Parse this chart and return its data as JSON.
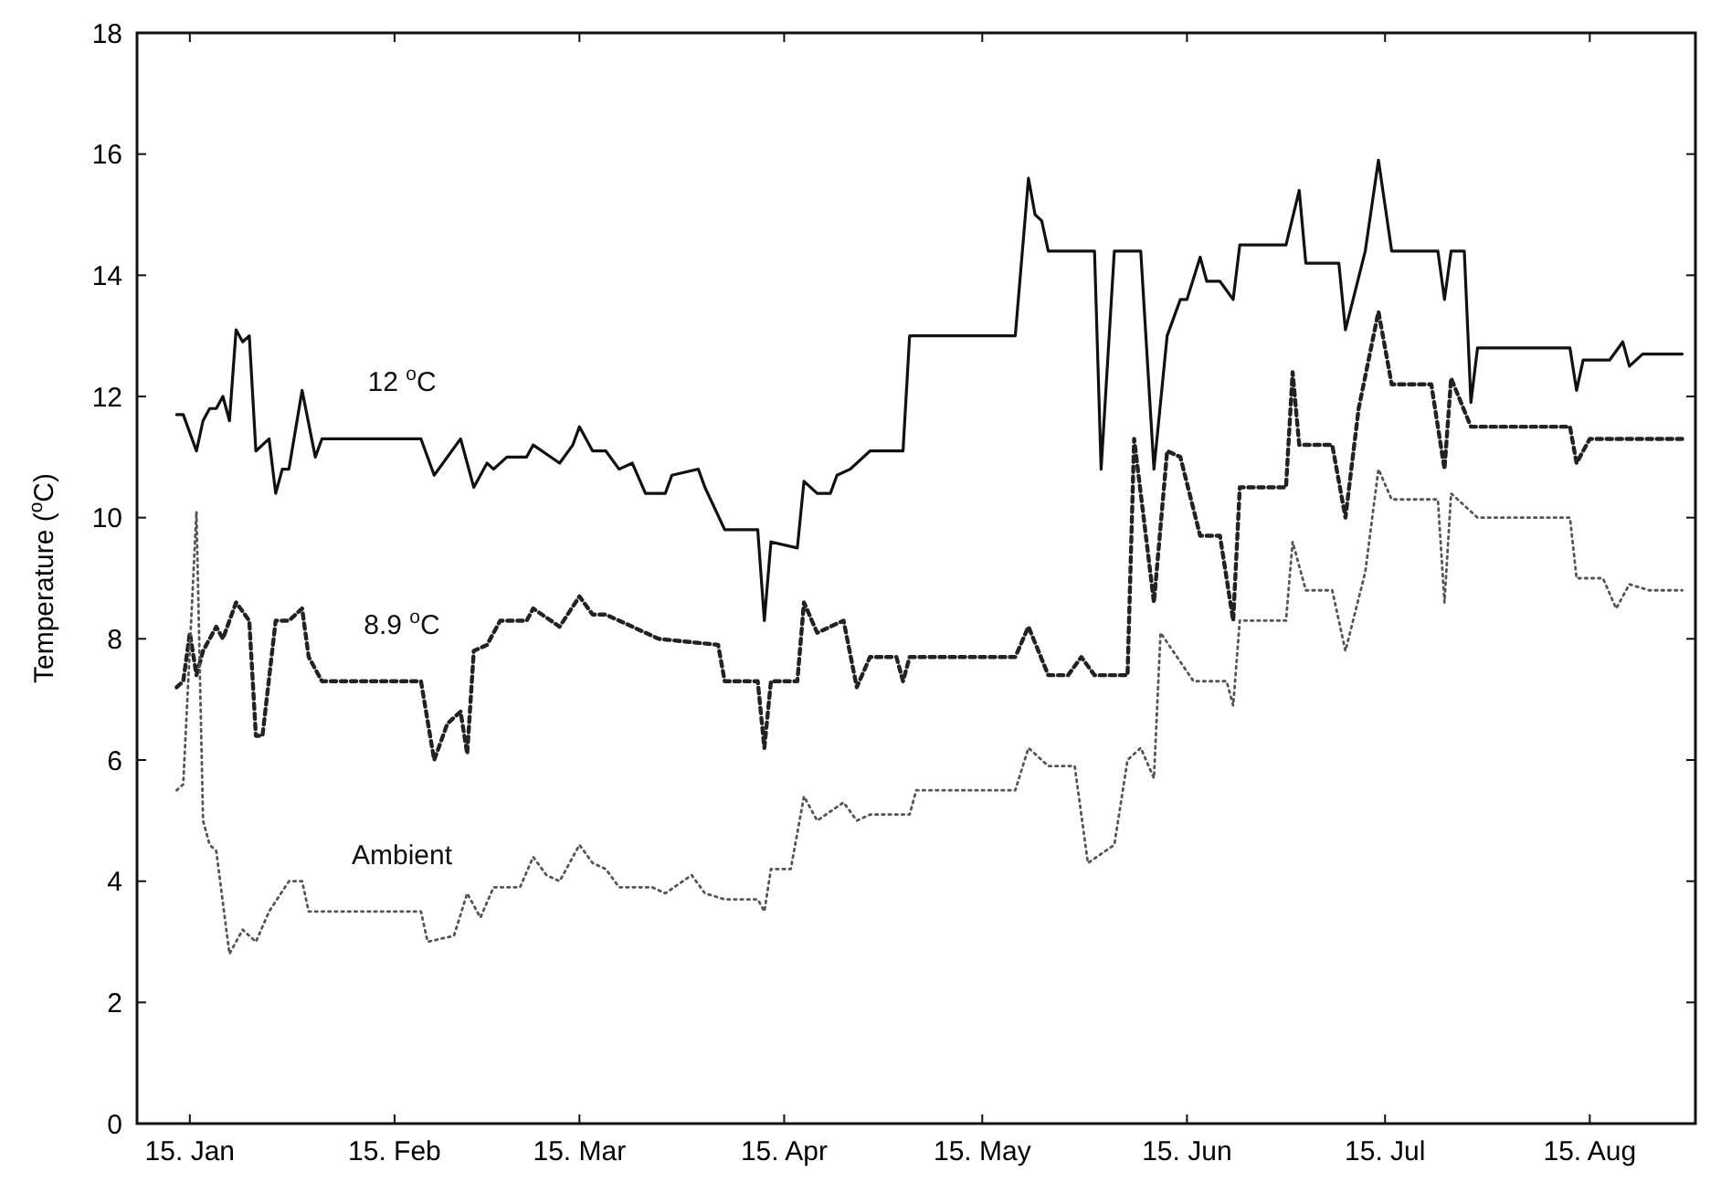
{
  "chart_data": {
    "type": "line",
    "ylabel": "Temperature ($^{o}$C)",
    "xlim": [
      "--01-07",
      "--08-31"
    ],
    "xticks": [
      {
        "value": "--01-15",
        "label": "15. Jan"
      },
      {
        "value": "--02-15",
        "label": "15. Feb"
      },
      {
        "value": "--03-15",
        "label": "15. Mar"
      },
      {
        "value": "--04-15",
        "label": "15. Apr"
      },
      {
        "value": "--05-15",
        "label": "15. May"
      },
      {
        "value": "--06-15",
        "label": "15. Jun"
      },
      {
        "value": "--07-15",
        "label": "15. Jul"
      },
      {
        "value": "--08-15",
        "label": "15. Aug"
      }
    ],
    "ylim": [
      0,
      18
    ],
    "yticks": [
      0,
      2,
      4,
      6,
      8,
      10,
      12,
      14,
      16,
      18
    ],
    "grid": false,
    "legend": false,
    "marker": "none",
    "series": [
      {
        "name": "12 $^{o}$C",
        "color": "#111111",
        "line_style": "solid",
        "x": [
          "--01-13",
          "--01-14",
          "--01-16",
          "--01-17",
          "--01-18",
          "--01-19",
          "--01-20",
          "--01-21",
          "--01-22",
          "--01-23",
          "--01-24",
          "--01-25",
          "--01-27",
          "--01-28",
          "--01-29",
          "--01-30",
          "--02-01",
          "--02-03",
          "--02-04",
          "--02-19",
          "--02-21",
          "--02-25",
          "--02-27",
          "--03-01",
          "--03-02",
          "--03-04",
          "--03-07",
          "--03-08",
          "--03-12",
          "--03-14",
          "--03-15",
          "--03-17",
          "--03-19",
          "--03-21",
          "--03-23",
          "--03-25",
          "--03-28",
          "--03-29",
          "--04-02",
          "--04-03",
          "--04-06",
          "--04-11",
          "--04-12",
          "--04-13",
          "--04-17",
          "--04-18",
          "--04-20",
          "--04-22",
          "--04-23",
          "--04-25",
          "--04-28",
          "--05-03",
          "--05-04",
          "--05-20",
          "--05-22",
          "--05-23",
          "--05-24",
          "--05-25",
          "--06-01",
          "--06-02",
          "--06-04",
          "--06-08",
          "--06-10",
          "--06-12",
          "--06-14",
          "--06-15",
          "--06-17",
          "--06-18",
          "--06-20",
          "--06-22",
          "--06-23",
          "--06-30",
          "--07-02",
          "--07-03",
          "--07-08",
          "--07-09",
          "--07-12",
          "--07-14",
          "--07-16",
          "--07-23",
          "--07-24",
          "--07-25",
          "--07-27",
          "--07-28",
          "--07-29",
          "--08-12",
          "--08-13",
          "--08-14",
          "--08-18",
          "--08-20",
          "--08-21",
          "--08-23",
          "--08-29"
        ],
        "values": [
          11.7,
          11.7,
          11.1,
          11.6,
          11.8,
          11.8,
          12.0,
          11.6,
          13.1,
          12.9,
          13.0,
          11.1,
          11.3,
          10.4,
          10.8,
          10.8,
          12.1,
          11.0,
          11.3,
          11.3,
          10.7,
          11.3,
          10.5,
          10.9,
          10.8,
          11.0,
          11.0,
          11.2,
          10.9,
          11.2,
          11.5,
          11.1,
          11.1,
          10.8,
          10.9,
          10.4,
          10.4,
          10.7,
          10.8,
          10.5,
          9.8,
          9.8,
          8.3,
          9.6,
          9.5,
          10.6,
          10.4,
          10.4,
          10.7,
          10.8,
          11.1,
          11.1,
          13.0,
          13.0,
          15.6,
          15.0,
          14.9,
          14.4,
          14.4,
          10.8,
          14.4,
          14.4,
          10.8,
          13.0,
          13.6,
          13.6,
          14.3,
          13.9,
          13.9,
          13.6,
          14.5,
          14.5,
          15.4,
          14.2,
          14.2,
          13.1,
          14.4,
          15.9,
          14.4,
          14.4,
          13.6,
          14.4,
          14.4,
          11.9,
          12.8,
          12.8,
          12.1,
          12.6,
          12.6,
          12.9,
          12.5,
          12.7,
          12.7
        ]
      },
      {
        "name": "8.9 $^{o}$C",
        "color": "#222222",
        "line_style": "dashed",
        "x": [
          "--01-13",
          "--01-14",
          "--01-15",
          "--01-16",
          "--01-17",
          "--01-19",
          "--01-20",
          "--01-22",
          "--01-24",
          "--01-25",
          "--01-26",
          "--01-28",
          "--01-30",
          "--02-01",
          "--02-02",
          "--02-04",
          "--02-19",
          "--02-21",
          "--02-23",
          "--02-25",
          "--02-26",
          "--02-27",
          "--03-01",
          "--03-03",
          "--03-07",
          "--03-08",
          "--03-12",
          "--03-15",
          "--03-17",
          "--03-19",
          "--03-23",
          "--03-27",
          "--04-05",
          "--04-06",
          "--04-11",
          "--04-12",
          "--04-13",
          "--04-17",
          "--04-18",
          "--04-20",
          "--04-24",
          "--04-26",
          "--04-28",
          "--05-02",
          "--05-03",
          "--05-04",
          "--05-20",
          "--05-22",
          "--05-25",
          "--05-28",
          "--05-30",
          "--06-01",
          "--06-06",
          "--06-07",
          "--06-10",
          "--06-12",
          "--06-14",
          "--06-17",
          "--06-20",
          "--06-22",
          "--06-23",
          "--06-30",
          "--07-01",
          "--07-02",
          "--07-07",
          "--07-09",
          "--07-11",
          "--07-14",
          "--07-16",
          "--07-22",
          "--07-24",
          "--07-25",
          "--07-28",
          "--08-12",
          "--08-13",
          "--08-15",
          "--08-20",
          "--08-29"
        ],
        "values": [
          7.2,
          7.3,
          8.1,
          7.4,
          7.8,
          8.2,
          8.0,
          8.6,
          8.3,
          6.4,
          6.4,
          8.3,
          8.3,
          8.5,
          7.7,
          7.3,
          7.3,
          6.0,
          6.6,
          6.8,
          6.1,
          7.8,
          7.9,
          8.3,
          8.3,
          8.5,
          8.2,
          8.7,
          8.4,
          8.4,
          8.2,
          8.0,
          7.9,
          7.3,
          7.3,
          6.2,
          7.3,
          7.3,
          8.6,
          8.1,
          8.3,
          7.2,
          7.7,
          7.7,
          7.3,
          7.7,
          7.7,
          8.2,
          7.4,
          7.4,
          7.7,
          7.4,
          7.4,
          11.3,
          8.6,
          11.1,
          11.0,
          9.7,
          9.7,
          8.3,
          10.5,
          10.5,
          12.4,
          11.2,
          11.2,
          10.0,
          11.8,
          13.4,
          12.2,
          12.2,
          10.8,
          12.3,
          11.5,
          11.5,
          10.9,
          11.3,
          11.3,
          11.3
        ]
      },
      {
        "name": "Ambient",
        "color": "#555555",
        "line_style": "dotted",
        "x": [
          "--01-13",
          "--01-14",
          "--01-16",
          "--01-17",
          "--01-18",
          "--01-19",
          "--01-21",
          "--01-23",
          "--01-25",
          "--01-27",
          "--01-30",
          "--02-01",
          "--02-02",
          "--02-19",
          "--02-20",
          "--02-24",
          "--02-26",
          "--02-28",
          "--03-02",
          "--03-06",
          "--03-08",
          "--03-10",
          "--03-12",
          "--03-15",
          "--03-17",
          "--03-19",
          "--03-21",
          "--03-26",
          "--03-28",
          "--04-01",
          "--04-03",
          "--04-06",
          "--04-11",
          "--04-12",
          "--04-13",
          "--04-16",
          "--04-18",
          "--04-20",
          "--04-24",
          "--04-26",
          "--04-28",
          "--05-04",
          "--05-05",
          "--05-20",
          "--05-22",
          "--05-25",
          "--05-29",
          "--05-31",
          "--06-04",
          "--06-06",
          "--06-08",
          "--06-10",
          "--06-11",
          "--06-16",
          "--06-21",
          "--06-22",
          "--06-23",
          "--06-30",
          "--07-01",
          "--07-03",
          "--07-07",
          "--07-09",
          "--07-12",
          "--07-14",
          "--07-16",
          "--07-23",
          "--07-24",
          "--07-25",
          "--07-29",
          "--08-12",
          "--08-13",
          "--08-17",
          "--08-19",
          "--08-21",
          "--08-24",
          "--08-29"
        ],
        "values": [
          5.5,
          5.6,
          10.1,
          5.0,
          4.6,
          4.5,
          2.8,
          3.2,
          3.0,
          3.5,
          4.0,
          4.0,
          3.5,
          3.5,
          3.0,
          3.1,
          3.8,
          3.4,
          3.9,
          3.9,
          4.4,
          4.1,
          4.0,
          4.6,
          4.3,
          4.2,
          3.9,
          3.9,
          3.8,
          4.1,
          3.8,
          3.7,
          3.7,
          3.5,
          4.2,
          4.2,
          5.4,
          5.0,
          5.3,
          5.0,
          5.1,
          5.1,
          5.5,
          5.5,
          6.2,
          5.9,
          5.9,
          4.3,
          4.6,
          6.0,
          6.2,
          5.7,
          8.1,
          7.3,
          7.3,
          6.9,
          8.3,
          8.3,
          9.6,
          8.8,
          8.8,
          7.8,
          9.1,
          10.8,
          10.3,
          10.3,
          8.6,
          10.4,
          10.0,
          10.0,
          9.0,
          9.0,
          8.5,
          8.9,
          8.8,
          8.8
        ]
      }
    ]
  }
}
